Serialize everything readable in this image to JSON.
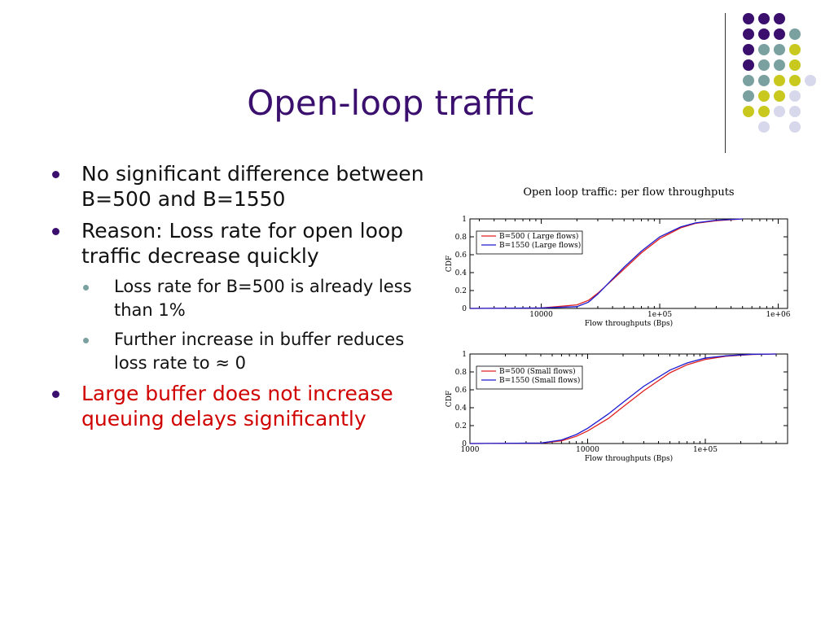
{
  "slide": {
    "title": "Open-loop traffic",
    "bullets": [
      {
        "text": "No significant difference between B=500 and B=1550"
      },
      {
        "text": "Reason: Loss rate for open loop traffic decrease quickly"
      },
      {
        "text": "Loss rate for B=500 is already less than 1%"
      },
      {
        "text": "Further increase in buffer reduces loss rate to ≈ 0"
      },
      {
        "text": "Large buffer does not increase queuing delays significantly"
      }
    ]
  },
  "colors": {
    "purple": "#3a0f6e",
    "teal": "#7aa0a0",
    "yellow": "#c8c81e",
    "lavender": "#d8d8ec",
    "red_curve": "#e02020",
    "blue_curve": "#1c1cd0"
  },
  "decor_dots": [
    [
      "purple",
      "purple",
      "purple",
      ""
    ],
    [
      "purple",
      "purple",
      "purple",
      "teal"
    ],
    [
      "purple",
      "teal",
      "teal",
      "yellow"
    ],
    [
      "purple",
      "teal",
      "teal",
      "yellow",
      ""
    ],
    [
      "teal",
      "teal",
      "yellow",
      "yellow",
      "lavender"
    ],
    [
      "teal",
      "yellow",
      "yellow",
      "lavender"
    ],
    [
      "yellow",
      "yellow",
      "lavender",
      "lavender"
    ],
    [
      "",
      "lavender",
      "",
      "lavender"
    ]
  ],
  "chart_title": "Open loop traffic: per flow throughputs",
  "chart_data": [
    {
      "type": "line",
      "xscale": "log",
      "xlim": [
        2500,
        1200000
      ],
      "ylim": [
        0,
        1
      ],
      "xticks": [
        10000,
        100000,
        1000000
      ],
      "xtick_labels": [
        "10000",
        "1e+05",
        "1e+06"
      ],
      "yticks": [
        0,
        0.2,
        0.4,
        0.6,
        0.8,
        1
      ],
      "ytick_labels": [
        "0",
        "0.2",
        "0.4",
        "0.6",
        "0.8",
        "1"
      ],
      "xlabel": "Flow throughputs (Bps)",
      "ylabel": "CDF",
      "legend": "top-left",
      "series": [
        {
          "name": "B=500 ( Large flows)",
          "color": "red",
          "x": [
            2500,
            10000,
            20000,
            25000,
            30000,
            40000,
            50000,
            70000,
            100000,
            150000,
            200000,
            300000,
            500000
          ],
          "y": [
            0,
            0.005,
            0.04,
            0.09,
            0.17,
            0.32,
            0.44,
            0.62,
            0.78,
            0.9,
            0.95,
            0.98,
            1.0
          ]
        },
        {
          "name": "B=1550 (Large flows)",
          "color": "blue",
          "x": [
            2500,
            10000,
            20000,
            25000,
            30000,
            40000,
            50000,
            70000,
            100000,
            150000,
            200000,
            300000,
            500000
          ],
          "y": [
            0,
            0.005,
            0.02,
            0.07,
            0.16,
            0.33,
            0.46,
            0.64,
            0.8,
            0.91,
            0.955,
            0.985,
            1.0
          ]
        }
      ]
    },
    {
      "type": "line",
      "xscale": "log",
      "xlim": [
        1000,
        500000
      ],
      "ylim": [
        0,
        1
      ],
      "xticks": [
        1000,
        10000,
        100000
      ],
      "xtick_labels": [
        "1000",
        "10000",
        "1e+05"
      ],
      "yticks": [
        0,
        0.2,
        0.4,
        0.6,
        0.8,
        1
      ],
      "ytick_labels": [
        "0",
        "0.2",
        "0.4",
        "0.6",
        "0.8",
        "1"
      ],
      "xlabel": "Flow throughputs (Bps)",
      "ylabel": "CDF",
      "legend": "top-left",
      "series": [
        {
          "name": "B=500 (Small flows)",
          "color": "red",
          "x": [
            1000,
            4000,
            6000,
            8000,
            10000,
            15000,
            20000,
            30000,
            50000,
            70000,
            100000,
            150000,
            250000,
            400000
          ],
          "y": [
            0,
            0.005,
            0.03,
            0.08,
            0.14,
            0.28,
            0.41,
            0.59,
            0.79,
            0.88,
            0.94,
            0.975,
            0.995,
            1.0
          ]
        },
        {
          "name": "B=1550 (Small flows)",
          "color": "blue",
          "x": [
            1000,
            4000,
            6000,
            8000,
            10000,
            15000,
            20000,
            30000,
            50000,
            70000,
            100000,
            150000,
            250000,
            400000
          ],
          "y": [
            0,
            0.005,
            0.04,
            0.1,
            0.17,
            0.33,
            0.46,
            0.64,
            0.82,
            0.9,
            0.955,
            0.98,
            0.997,
            1.0
          ]
        }
      ]
    }
  ]
}
